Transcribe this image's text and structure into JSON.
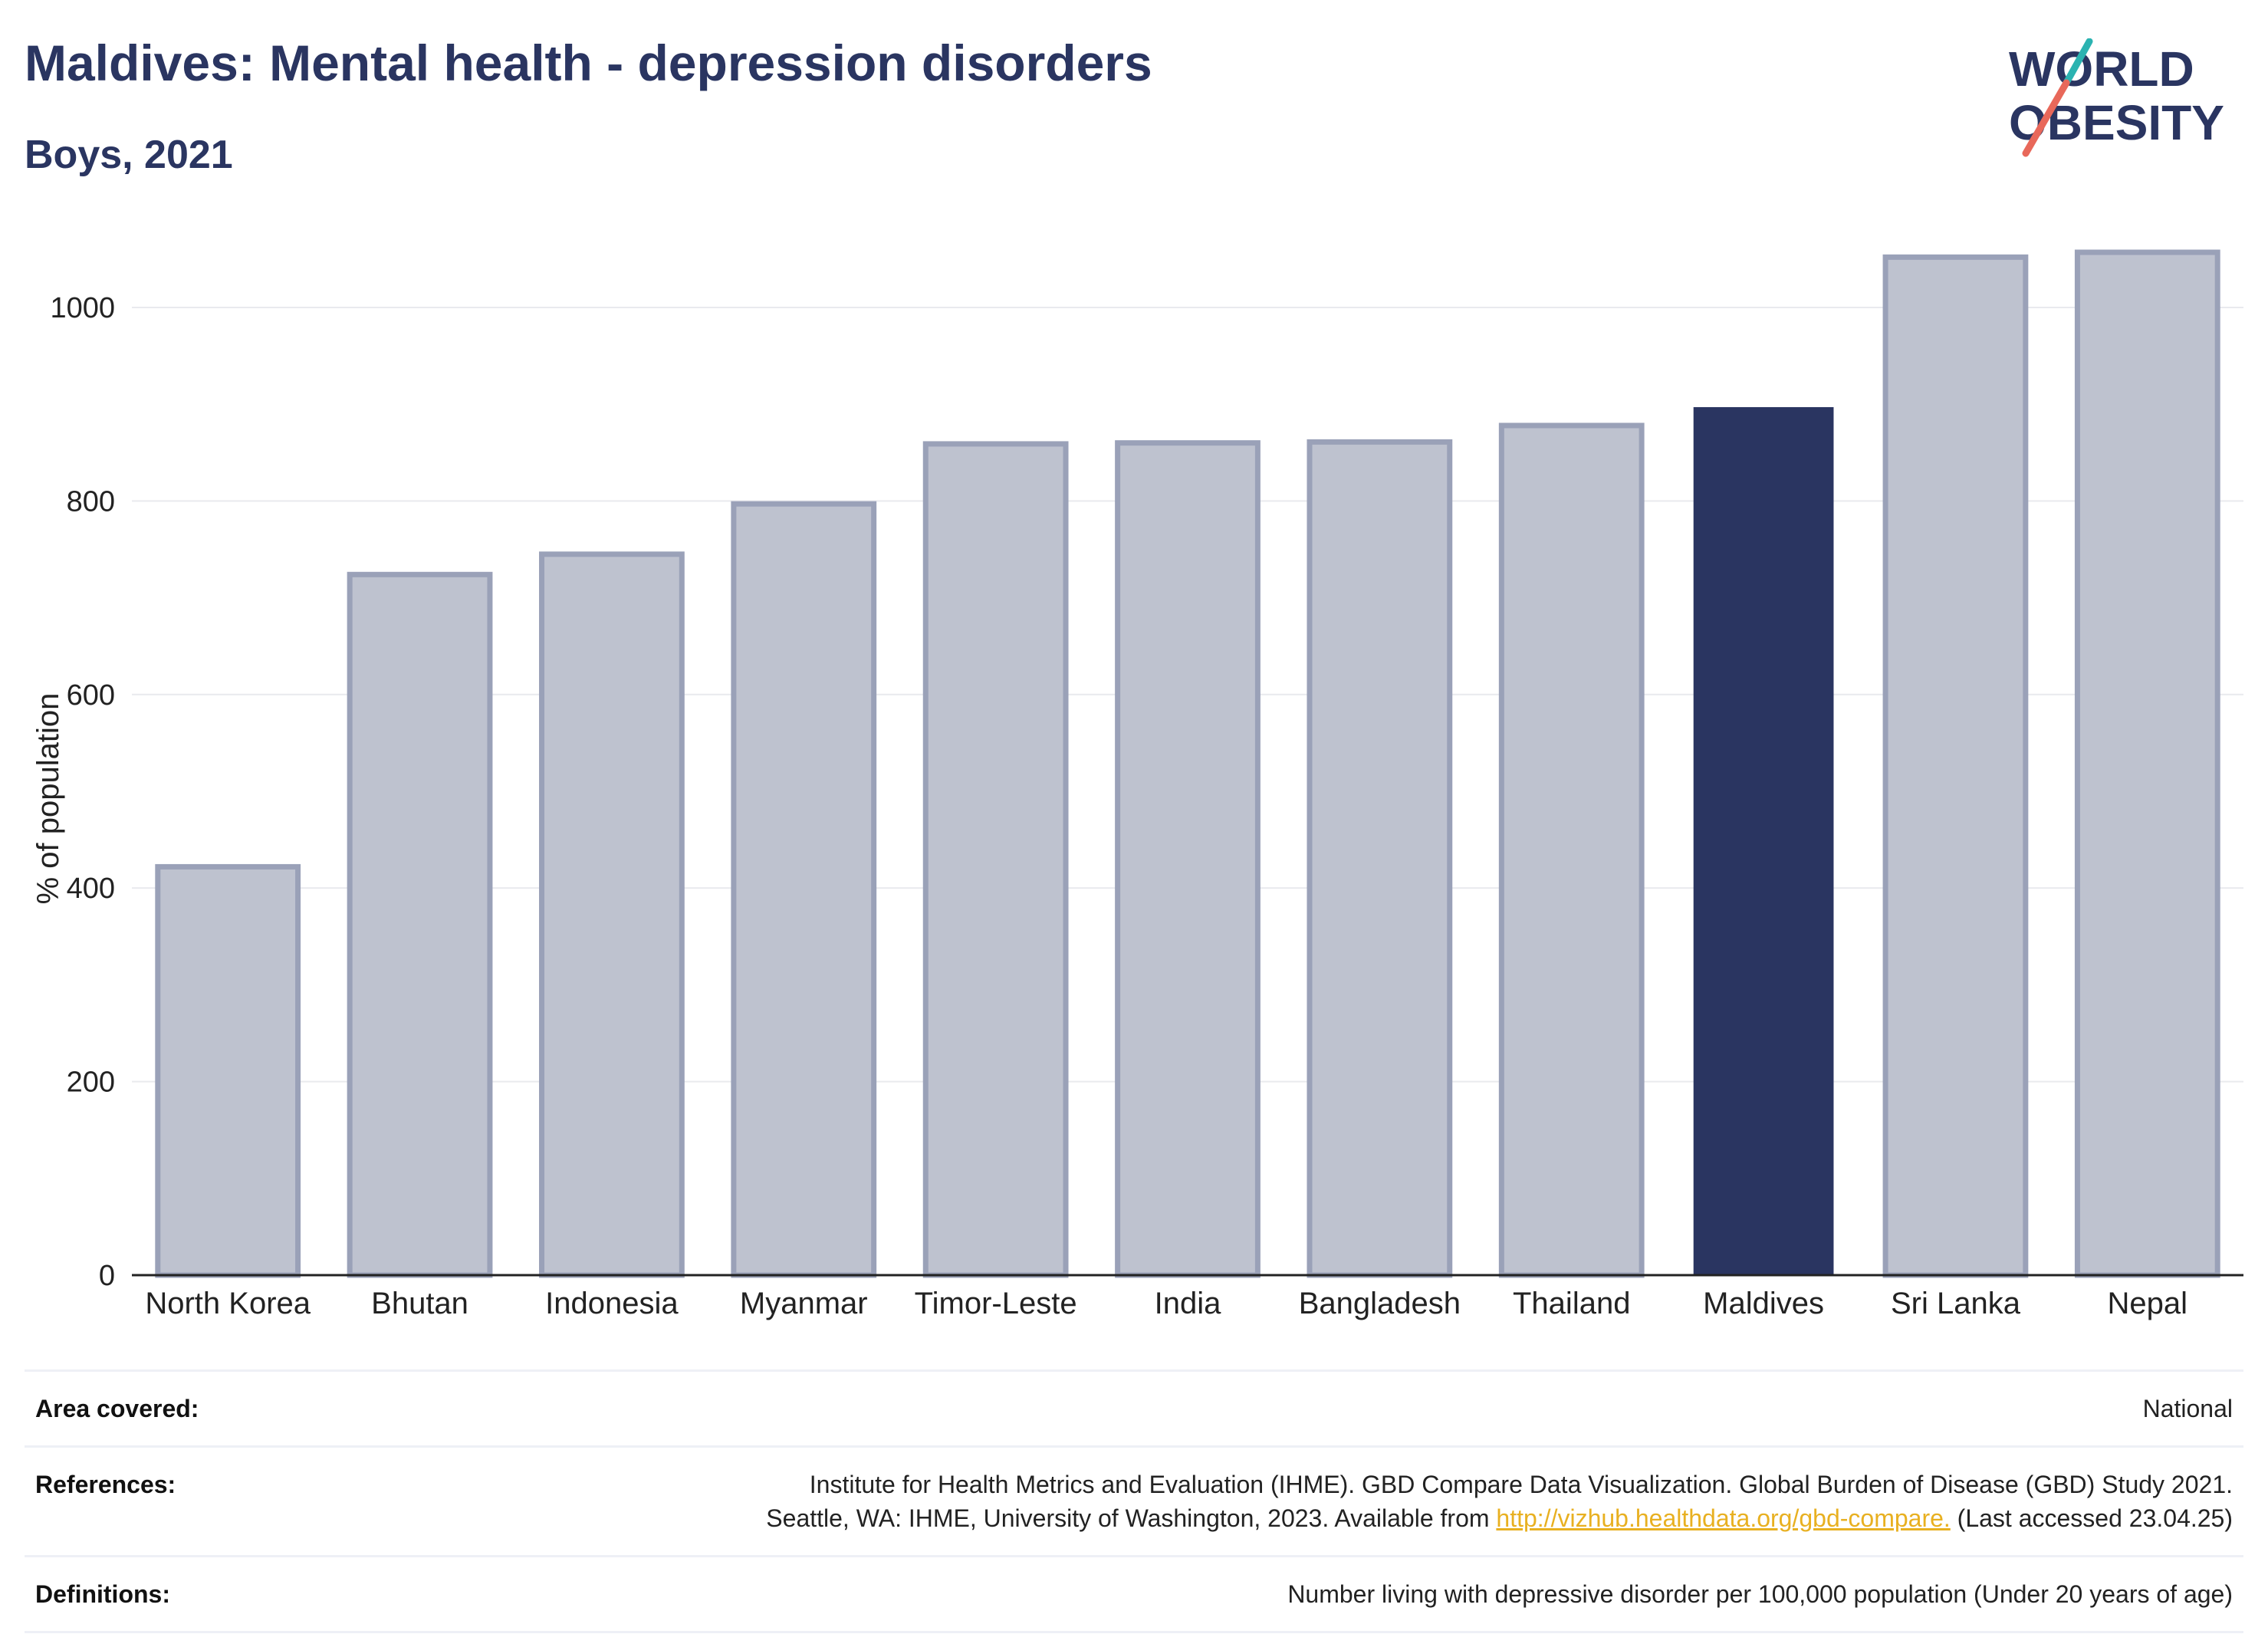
{
  "header": {
    "title": "Maldives: Mental health - depression disorders",
    "subtitle": "Boys, 2021"
  },
  "logo": {
    "line1": "WORLD",
    "line2": "OBESITY",
    "colors": {
      "text": "#2a3561",
      "slash_top": "#2bb3b1",
      "slash_bottom": "#e8685a"
    }
  },
  "chart_data": {
    "type": "bar",
    "categories": [
      "North Korea",
      "Bhutan",
      "Indonesia",
      "Myanmar",
      "Timor-Leste",
      "India",
      "Bangladesh",
      "Thailand",
      "Maldives",
      "Sri Lanka",
      "Nepal"
    ],
    "values": [
      422,
      724,
      745,
      797,
      859,
      860,
      861,
      878,
      897,
      1052,
      1057
    ],
    "highlight": "Maldives",
    "ylabel": "% of population",
    "ylim": [
      0,
      1080
    ],
    "yticks": [
      0,
      200,
      400,
      600,
      800,
      1000
    ],
    "grid": true,
    "colors": {
      "bar": "#bec2cf",
      "bar_edge": "#9aa1b8",
      "highlight": "#2a3561"
    }
  },
  "info": {
    "area_label": "Area covered:",
    "area_value": "National",
    "references_label": "References:",
    "references_line1": "Institute for Health Metrics and Evaluation (IHME). GBD Compare Data Visualization. Global Burden of Disease (GBD) Study 2021.",
    "references_line2_pre": "Seattle, WA: IHME, University of Washington, 2023. Available from ",
    "references_link": "http://vizhub.healthdata.org/gbd-compare.",
    "references_line2_post": " (Last accessed 23.04.25)",
    "definitions_label": "Definitions:",
    "definitions_value": "Number living with depressive disorder per 100,000 population (Under 20 years of age)"
  }
}
